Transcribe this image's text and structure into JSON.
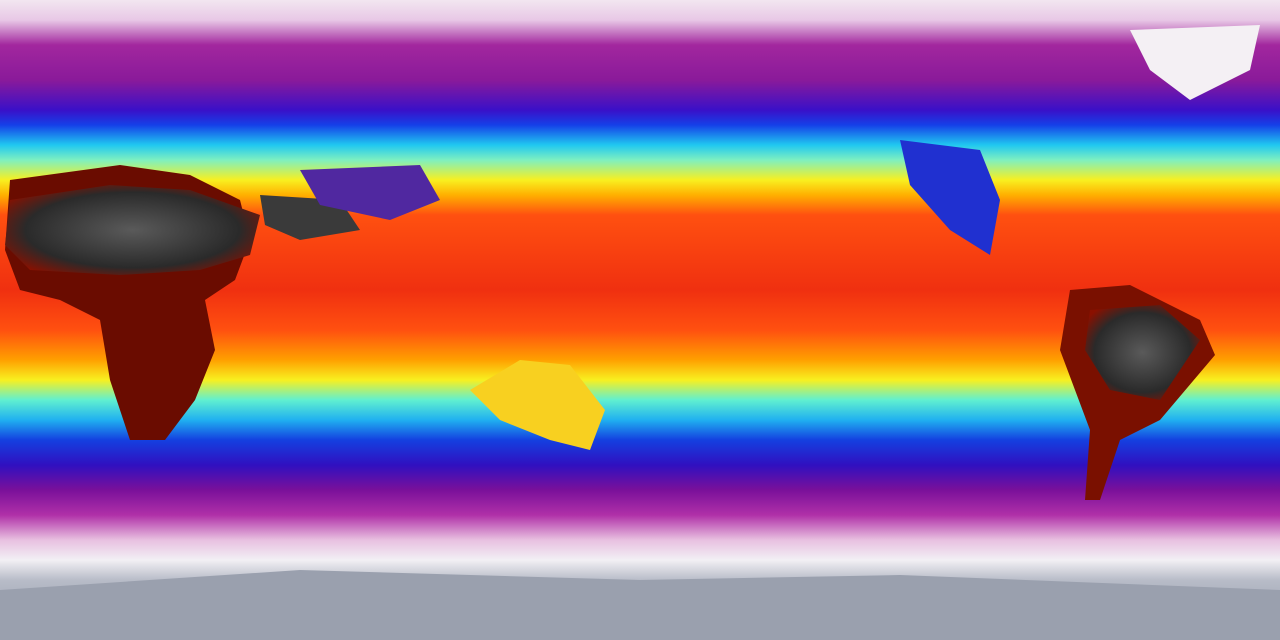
{
  "map": {
    "projection": "equirectangular",
    "colormap": [
      "#f2f0f4",
      "#a2279e",
      "#3a10c8",
      "#1540e8",
      "#20c8f0",
      "#f8f020",
      "#ffa000",
      "#f03010",
      "#2a2a2a"
    ],
    "background_color": "#8c94a4"
  }
}
